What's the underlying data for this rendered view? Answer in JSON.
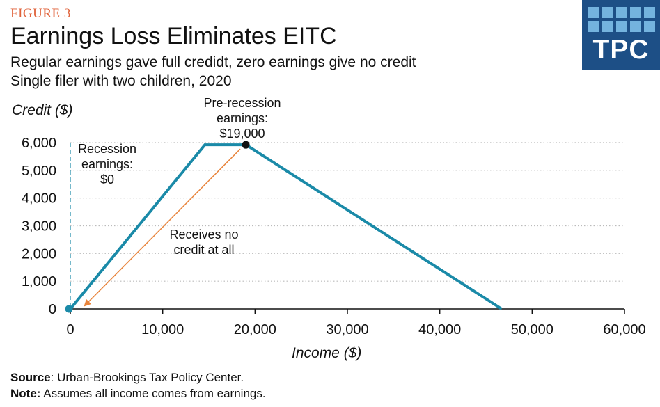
{
  "header": {
    "figure_label": "FIGURE 3",
    "title": "Earnings Loss Eliminates EITC",
    "subtitle_line1": "Regular earnings gave full credidt, zero earnings give no credit",
    "subtitle_line2": "Single filer with two children, 2020"
  },
  "logo": {
    "text": "TPC"
  },
  "footer": {
    "source_label": "Source",
    "source_text": ": Urban-Brookings Tax Policy Center.",
    "note_label": "Note:",
    "note_text": " Assumes all income comes from earnings."
  },
  "colors": {
    "line": "#1a8aa8",
    "arrow": "#e8843c",
    "gridline": "#bbbbbb",
    "figure_label": "#e0623a",
    "logo_bg": "#1d4f86",
    "logo_squares": "#74b3de"
  },
  "chart_data": {
    "type": "line",
    "title": "Earnings Loss Eliminates EITC",
    "xlabel": "Income ($)",
    "ylabel": "Credit ($)",
    "xlim": [
      0,
      60000
    ],
    "ylim": [
      0,
      6000
    ],
    "x_ticks": [
      0,
      10000,
      20000,
      30000,
      40000,
      50000,
      60000
    ],
    "x_tick_labels": [
      "0",
      "10,000",
      "20,000",
      "30,000",
      "40,000",
      "50,000",
      "60,000"
    ],
    "y_ticks": [
      0,
      1000,
      2000,
      3000,
      4000,
      5000,
      6000
    ],
    "y_tick_labels": [
      "0",
      "1,000",
      "2,000",
      "3,000",
      "4,000",
      "5,000",
      "6,000"
    ],
    "grid": "horizontal dotted",
    "series": [
      {
        "name": "EITC",
        "x": [
          0,
          14570,
          19030,
          46700
        ],
        "y": [
          0,
          5920,
          5920,
          0
        ]
      }
    ],
    "markers": [
      {
        "name": "pre-recession",
        "x": 19000,
        "y": 5920,
        "color": "#111111"
      },
      {
        "name": "recession",
        "x": 0,
        "y": 0,
        "color": "#1a8aa8"
      }
    ],
    "annotations": {
      "pre_recession": [
        "Pre-recession",
        "earnings:",
        "$19,000"
      ],
      "recession": [
        "Recession",
        "earnings:",
        "$0"
      ],
      "arrow_label": [
        "Receives no",
        "credit at all"
      ]
    }
  }
}
